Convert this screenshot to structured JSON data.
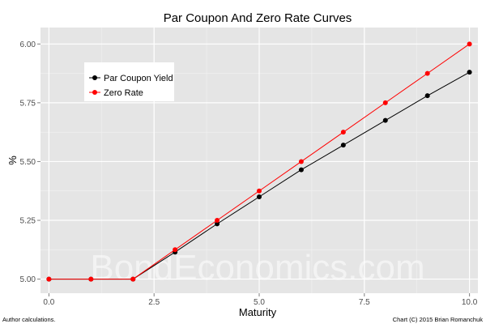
{
  "chart_data": {
    "type": "line",
    "title": "Par Coupon And Zero Rate Curves",
    "xlabel": "Maturity",
    "ylabel": "%",
    "xlim": [
      -0.2,
      10.2
    ],
    "ylim": [
      4.94,
      6.07
    ],
    "x_ticks": [
      "0.0",
      "2.5",
      "5.0",
      "7.5",
      "10.0"
    ],
    "y_ticks": [
      "5.00",
      "5.25",
      "5.50",
      "5.75",
      "6.00"
    ],
    "grid": true,
    "legend_position": "top-left",
    "x": [
      0,
      1,
      2,
      3,
      4,
      5,
      6,
      7,
      8,
      9,
      10
    ],
    "series": [
      {
        "name": "Par Coupon Yield",
        "color": "#000000",
        "values": [
          5.0,
          5.0,
          5.0,
          5.115,
          5.235,
          5.35,
          5.465,
          5.57,
          5.675,
          5.78,
          5.88
        ]
      },
      {
        "name": "Zero Rate",
        "color": "#ff0000",
        "values": [
          5.0,
          5.0,
          5.0,
          5.125,
          5.25,
          5.375,
          5.5,
          5.625,
          5.75,
          5.875,
          6.0
        ]
      }
    ],
    "watermark": "BondEconomics.com",
    "footnote_left": "Author calculations.",
    "footnote_right": "Chart (C) 2015 Brian Romanchuk"
  }
}
